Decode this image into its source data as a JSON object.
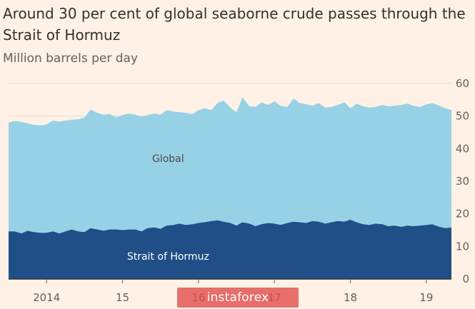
{
  "header": {
    "title": "Around 30 per cent of global seaborne crude passes through the Strait of Hormuz",
    "subtitle": "Million barrels per day"
  },
  "colors": {
    "background": "#fff1e5",
    "global_area": "#97d1e6",
    "hormuz_area": "#1f4f86",
    "global_label": "#4d4a47",
    "hormuz_label": "#ffffff",
    "axis_text": "#66605c",
    "baseline": "#33302e",
    "watermark": "#e04a4a"
  },
  "watermark": {
    "text": "instaforex"
  },
  "chart_data": {
    "type": "area",
    "stacked": false,
    "y_axis_side": "right",
    "ylim": [
      0,
      60
    ],
    "yticks": [
      0,
      10,
      20,
      30,
      40,
      50,
      60
    ],
    "xlim": [
      2013.5,
      2019.33
    ],
    "xticks": [
      {
        "value": 2014,
        "label": "2014"
      },
      {
        "value": 2015,
        "label": "15"
      },
      {
        "value": 2016,
        "label": "16"
      },
      {
        "value": 2017,
        "label": "17"
      },
      {
        "value": 2018,
        "label": "18"
      },
      {
        "value": 2019,
        "label": "19"
      }
    ],
    "grid": true,
    "series": [
      {
        "name": "Global",
        "label_position": [
          2015.6,
          37
        ],
        "x": [
          2013.5,
          2013.58,
          2013.67,
          2013.75,
          2013.83,
          2013.92,
          2014.0,
          2014.08,
          2014.17,
          2014.25,
          2014.33,
          2014.42,
          2014.5,
          2014.58,
          2014.67,
          2014.75,
          2014.83,
          2014.92,
          2015.0,
          2015.08,
          2015.17,
          2015.25,
          2015.33,
          2015.42,
          2015.5,
          2015.58,
          2015.67,
          2015.75,
          2015.83,
          2015.92,
          2016.0,
          2016.08,
          2016.17,
          2016.25,
          2016.33,
          2016.42,
          2016.5,
          2016.58,
          2016.67,
          2016.75,
          2016.83,
          2016.92,
          2017.0,
          2017.08,
          2017.17,
          2017.25,
          2017.33,
          2017.42,
          2017.5,
          2017.58,
          2017.67,
          2017.75,
          2017.83,
          2017.92,
          2018.0,
          2018.08,
          2018.17,
          2018.25,
          2018.33,
          2018.42,
          2018.5,
          2018.58,
          2018.67,
          2018.75,
          2018.83,
          2018.92,
          2019.0,
          2019.08,
          2019.17,
          2019.25,
          2019.33
        ],
        "values": [
          48.0,
          48.5,
          48.2,
          47.8,
          47.3,
          47.2,
          47.4,
          48.6,
          48.3,
          48.6,
          48.9,
          49.0,
          49.6,
          52.0,
          51.0,
          50.4,
          50.6,
          49.6,
          50.3,
          50.8,
          50.4,
          49.8,
          50.3,
          50.8,
          50.4,
          51.8,
          51.4,
          51.2,
          51.0,
          50.6,
          51.8,
          52.4,
          51.8,
          54.0,
          54.8,
          52.6,
          51.2,
          55.8,
          53.0,
          52.8,
          54.2,
          53.4,
          54.6,
          53.2,
          52.8,
          55.4,
          54.0,
          53.6,
          53.2,
          54.0,
          52.6,
          52.8,
          53.4,
          54.2,
          52.4,
          53.8,
          53.0,
          52.6,
          52.8,
          53.4,
          53.0,
          53.2,
          53.4,
          53.8,
          53.2,
          52.8,
          53.6,
          54.0,
          53.2,
          52.4,
          51.8
        ]
      },
      {
        "name": "Strait of Hormuz",
        "label_position": [
          2015.6,
          7
        ],
        "x": [
          2013.5,
          2013.58,
          2013.67,
          2013.75,
          2013.83,
          2013.92,
          2014.0,
          2014.08,
          2014.17,
          2014.25,
          2014.33,
          2014.42,
          2014.5,
          2014.58,
          2014.67,
          2014.75,
          2014.83,
          2014.92,
          2015.0,
          2015.08,
          2015.17,
          2015.25,
          2015.33,
          2015.42,
          2015.5,
          2015.58,
          2015.67,
          2015.75,
          2015.83,
          2015.92,
          2016.0,
          2016.08,
          2016.17,
          2016.25,
          2016.33,
          2016.42,
          2016.5,
          2016.58,
          2016.67,
          2016.75,
          2016.83,
          2016.92,
          2017.0,
          2017.08,
          2017.17,
          2017.25,
          2017.33,
          2017.42,
          2017.5,
          2017.58,
          2017.67,
          2017.75,
          2017.83,
          2017.92,
          2018.0,
          2018.08,
          2018.17,
          2018.25,
          2018.33,
          2018.42,
          2018.5,
          2018.58,
          2018.67,
          2018.75,
          2018.83,
          2018.92,
          2019.0,
          2019.08,
          2019.17,
          2019.25,
          2019.33
        ],
        "values": [
          14.6,
          14.6,
          14.0,
          14.8,
          14.4,
          14.2,
          14.2,
          14.6,
          14.0,
          14.6,
          15.2,
          14.6,
          14.4,
          15.6,
          15.2,
          14.8,
          15.2,
          15.2,
          15.0,
          15.2,
          15.2,
          14.6,
          15.6,
          15.8,
          15.4,
          16.4,
          16.6,
          17.0,
          16.6,
          16.8,
          17.2,
          17.4,
          17.8,
          18.0,
          17.6,
          17.2,
          16.4,
          17.4,
          17.0,
          16.2,
          16.8,
          17.2,
          17.0,
          16.6,
          17.2,
          17.6,
          17.4,
          17.2,
          17.8,
          17.6,
          17.0,
          17.4,
          17.8,
          17.6,
          18.2,
          17.4,
          16.8,
          16.6,
          17.0,
          16.8,
          16.2,
          16.4,
          16.0,
          16.4,
          16.2,
          16.4,
          16.6,
          16.8,
          16.0,
          15.6,
          15.8
        ]
      }
    ]
  }
}
